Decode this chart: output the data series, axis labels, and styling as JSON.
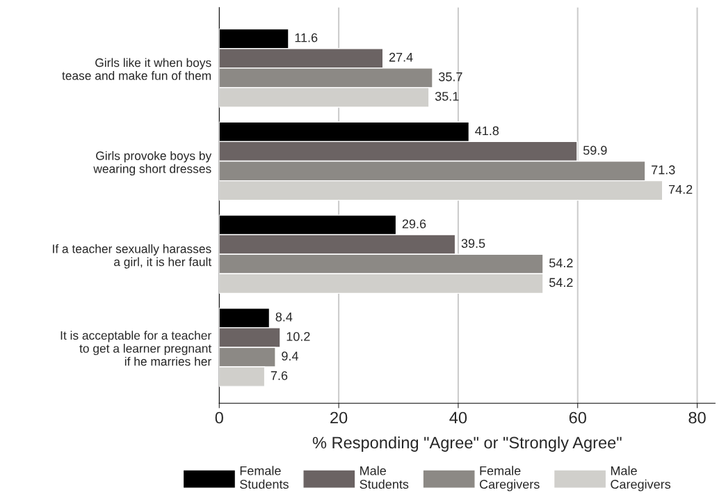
{
  "chart_data": {
    "type": "bar",
    "orientation": "horizontal",
    "categories": [
      "Girls like it when boys\ntease and make fun of them",
      "Girls provoke boys by\nwearing short dresses",
      "If a teacher sexually harasses\na girl, it is her fault",
      "It is acceptable for a teacher\nto get a learner pregnant\nif he marries her"
    ],
    "series": [
      {
        "name": "Female\nStudents",
        "color": "#000000",
        "values": [
          11.6,
          41.8,
          29.6,
          8.4
        ]
      },
      {
        "name": "Male\nStudents",
        "color": "#6b6363",
        "values": [
          27.4,
          59.9,
          39.5,
          10.2
        ]
      },
      {
        "name": "Female\nCaregivers",
        "color": "#8c8985",
        "values": [
          35.7,
          71.3,
          54.2,
          9.4
        ]
      },
      {
        "name": "Male\nCaregivers",
        "color": "#d0cfcb",
        "values": [
          35.1,
          74.2,
          54.2,
          7.6
        ]
      }
    ],
    "xlabel": "% Responding \"Agree\" or \"Strongly Agree\"",
    "xlim": [
      0,
      83
    ],
    "xticks": [
      0,
      20,
      40,
      60,
      80
    ],
    "grid": "x",
    "legend": "bottom",
    "data_labels": true
  }
}
